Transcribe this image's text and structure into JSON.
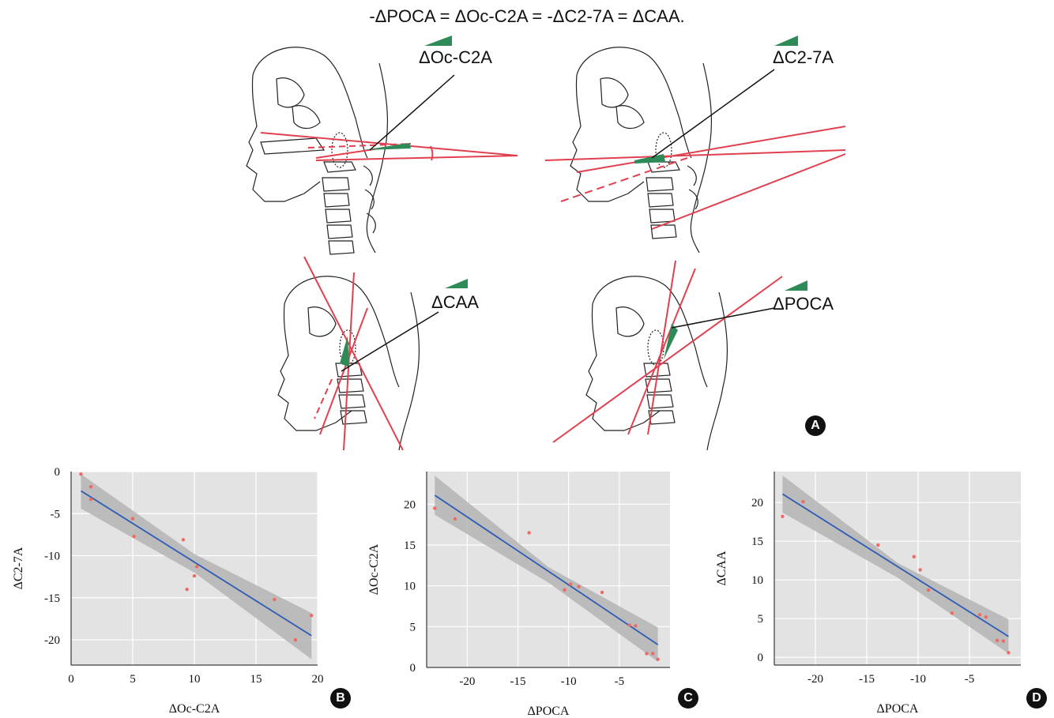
{
  "title": "-ΔPOCA = ΔOc-C2A = -ΔC2-7A = ΔCAA.",
  "panel_a": {
    "label": "A",
    "annotations": [
      "ΔOc-C2A",
      "ΔC2-7A",
      "ΔCAA",
      "ΔPOCA"
    ]
  },
  "colors": {
    "plot_bg": "#e3e3e3",
    "grid": "#ffffff",
    "fit_line": "#2d5bb5",
    "band": "#b4b4b4",
    "point": "#ef6a62",
    "radiograph_line": "#e0404f",
    "wedge": "#2e8b57"
  },
  "chart_data": [
    {
      "type": "scatter",
      "panel": "B",
      "xlabel": "ΔOc-C2A",
      "ylabel": "ΔC2-7A",
      "xlim": [
        0,
        20
      ],
      "ylim": [
        -23,
        0
      ],
      "xticks": [
        0,
        5,
        10,
        15,
        20
      ],
      "yticks": [
        0,
        -5,
        -10,
        -15,
        -20
      ],
      "xtick_labels": [
        "0",
        "5",
        "10",
        "15",
        "20"
      ],
      "ytick_labels": [
        "0",
        "-5",
        "-10",
        "-15",
        "-20"
      ],
      "points": [
        [
          0.8,
          -0.3
        ],
        [
          1.6,
          -1.8
        ],
        [
          1.6,
          -3.3
        ],
        [
          5.0,
          -5.6
        ],
        [
          5.1,
          -7.7
        ],
        [
          9.1,
          -8.1
        ],
        [
          9.4,
          -14.0
        ],
        [
          10.0,
          -12.4
        ],
        [
          10.2,
          -11.3
        ],
        [
          16.5,
          -15.2
        ],
        [
          18.2,
          -20.0
        ],
        [
          19.5,
          -17.1
        ]
      ],
      "fit": {
        "x": [
          0.8,
          19.5
        ],
        "y": [
          -2.3,
          -19.5
        ]
      },
      "band": {
        "x": [
          0.8,
          10,
          19.5
        ],
        "upper": [
          -0.3,
          -9.8,
          -16.8
        ],
        "lower": [
          -4.4,
          -12.0,
          -22.3
        ]
      },
      "grid": true
    },
    {
      "type": "scatter",
      "panel": "C",
      "xlabel": "ΔPOCA",
      "ylabel": "ΔOc-C2A",
      "xlim": [
        -24,
        0
      ],
      "ylim": [
        0,
        24
      ],
      "xticks": [
        -20,
        -15,
        -10,
        -5
      ],
      "yticks": [
        0,
        5,
        10,
        15,
        20
      ],
      "xtick_labels": [
        "-20",
        "-15",
        "-10",
        "-5"
      ],
      "ytick_labels": [
        "0",
        "5",
        "10",
        "15",
        "20"
      ],
      "points": [
        [
          -23.2,
          19.5
        ],
        [
          -21.2,
          18.2
        ],
        [
          -13.9,
          16.5
        ],
        [
          -10.4,
          9.5
        ],
        [
          -9.8,
          10.2
        ],
        [
          -9.0,
          9.9
        ],
        [
          -6.7,
          9.2
        ],
        [
          -4.0,
          5.2
        ],
        [
          -3.4,
          5.1
        ],
        [
          -2.3,
          1.7
        ],
        [
          -1.7,
          1.7
        ],
        [
          -1.2,
          1.0
        ]
      ],
      "fit": {
        "x": [
          -23.2,
          -1.2
        ],
        "y": [
          21.1,
          2.8
        ]
      },
      "band": {
        "x": [
          -23.2,
          -12,
          -1.2
        ],
        "upper": [
          23.5,
          12.3,
          4.9
        ],
        "lower": [
          18.7,
          10.4,
          0.7
        ]
      },
      "grid": true
    },
    {
      "type": "scatter",
      "panel": "D",
      "xlabel": "ΔPOCA",
      "ylabel": "ΔCAA",
      "xlim": [
        -24,
        0
      ],
      "ylim": [
        -1,
        24
      ],
      "xticks": [
        -20,
        -15,
        -10,
        -5
      ],
      "yticks": [
        0,
        5,
        10,
        15,
        20
      ],
      "xtick_labels": [
        "-20",
        "-15",
        "-10",
        "-5"
      ],
      "ytick_labels": [
        "0",
        "5",
        "10",
        "15",
        "20"
      ],
      "points": [
        [
          -23.2,
          18.2
        ],
        [
          -21.2,
          20.1
        ],
        [
          -13.9,
          14.5
        ],
        [
          -10.4,
          13.0
        ],
        [
          -9.8,
          11.3
        ],
        [
          -9.0,
          8.7
        ],
        [
          -6.7,
          5.7
        ],
        [
          -4.0,
          5.5
        ],
        [
          -3.4,
          5.2
        ],
        [
          -2.3,
          2.2
        ],
        [
          -1.7,
          2.1
        ],
        [
          -1.2,
          0.6
        ]
      ],
      "fit": {
        "x": [
          -23.2,
          -1.2
        ],
        "y": [
          21.1,
          2.7
        ]
      },
      "band": {
        "x": [
          -23.2,
          -12,
          -1.2
        ],
        "upper": [
          23.5,
          12.2,
          4.9
        ],
        "lower": [
          18.7,
          10.3,
          0.5
        ]
      },
      "grid": true
    }
  ],
  "panel_labels": {
    "b": "B",
    "c": "C",
    "d": "D"
  }
}
